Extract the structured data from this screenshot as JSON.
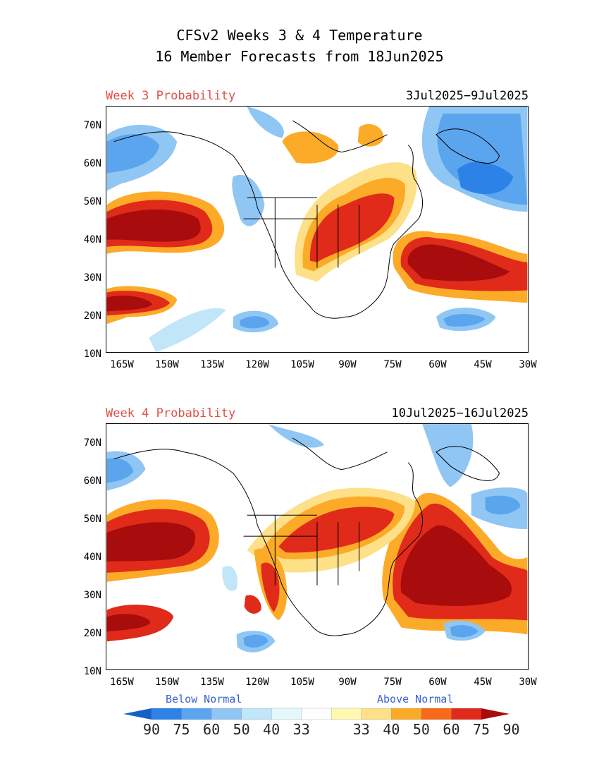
{
  "title_line1": "CFSv2 Weeks 3 & 4 Temperature",
  "title_line2": "16 Member Forecasts from 18Jun2025",
  "panels": [
    {
      "label": "Week 3 Probability",
      "dates": "3Jul2025−9Jul2025",
      "anomalies": [
        {
          "kind": "warm",
          "level": 5,
          "region": "central Pacific near 40N 160W"
        },
        {
          "kind": "warm",
          "level": 5,
          "region": "western Atlantic near 35N 55W"
        },
        {
          "kind": "warm",
          "level": 4,
          "region": "central US / Great Lakes / Ontario"
        },
        {
          "kind": "cold",
          "level": 4,
          "region": "Greenland / Labrador Sea"
        },
        {
          "kind": "cold",
          "level": 3,
          "region": "Alaska / Bering Sea"
        }
      ]
    },
    {
      "label": "Week 4 Probability",
      "dates": "10Jul2025−16Jul2025",
      "anomalies": [
        {
          "kind": "warm",
          "level": 5,
          "region": "central Pacific near 42N 160W"
        },
        {
          "kind": "warm",
          "level": 5,
          "region": "western Atlantic near 35N 55W"
        },
        {
          "kind": "warm",
          "level": 4,
          "region": "central US / Great Lakes"
        },
        {
          "kind": "warm",
          "level": 3,
          "region": "southwest US / Baja"
        },
        {
          "kind": "cold",
          "level": 2,
          "region": "Greenland"
        }
      ]
    }
  ],
  "y_ticks": [
    "70N",
    "60N",
    "50N",
    "40N",
    "30N",
    "20N",
    "10N"
  ],
  "x_ticks": [
    "165W",
    "150W",
    "135W",
    "120W",
    "105W",
    "90W",
    "75W",
    "60W",
    "45W",
    "30W"
  ],
  "legend": {
    "below_label": "Below Normal",
    "above_label": "Above Normal",
    "values": [
      "90",
      "75",
      "60",
      "50",
      "40",
      "33",
      "33",
      "40",
      "50",
      "60",
      "75",
      "90"
    ],
    "colors": [
      "#1462c8",
      "#2c82e6",
      "#5aa5ee",
      "#8fc6f4",
      "#c0e6f8",
      "#e4f8fc",
      "#ffffff",
      "#fff8b0",
      "#fde087",
      "#fcab28",
      "#f86a1a",
      "#e02a1a",
      "#a80c0c"
    ]
  }
}
